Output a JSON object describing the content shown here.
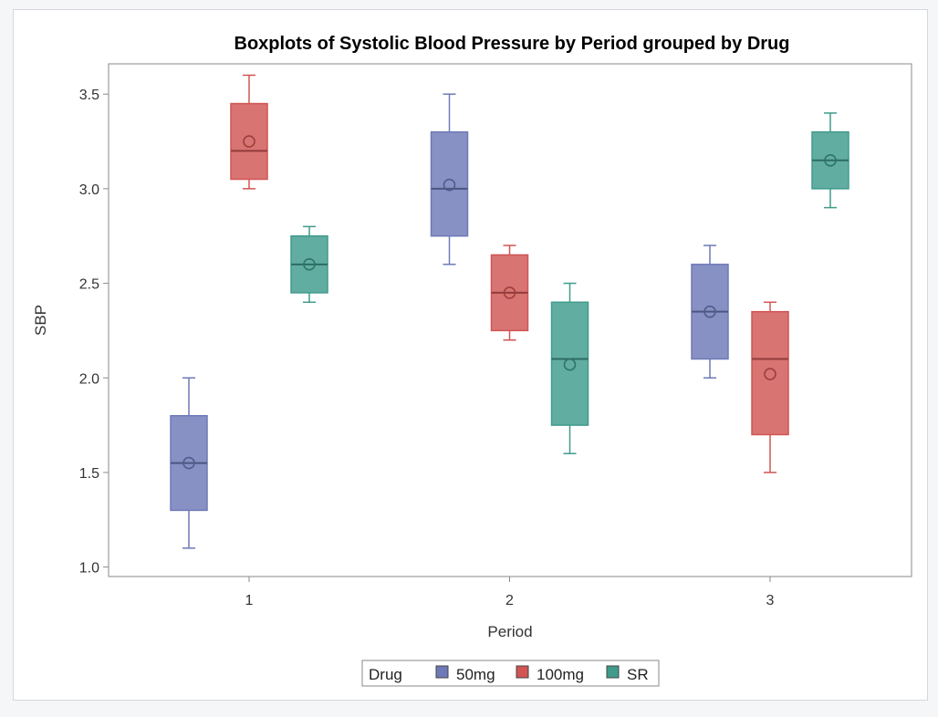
{
  "chart_data": {
    "type": "boxplot",
    "title": "Boxplots of Systolic Blood Pressure by Period grouped by Drug",
    "xlabel": "Period",
    "ylabel": "SBP",
    "categories": [
      "1",
      "2",
      "3"
    ],
    "ylim": [
      0.95,
      3.66
    ],
    "yticks": [
      "1.0",
      "1.5",
      "2.0",
      "2.5",
      "3.0",
      "3.5"
    ],
    "legend": {
      "title": "Drug",
      "position": "bottom"
    },
    "series": [
      {
        "name": "50mg",
        "color": "#6e79b7",
        "boxes": [
          {
            "period": "1",
            "min": 1.1,
            "q1": 1.3,
            "median": 1.55,
            "q3": 1.8,
            "max": 2.0,
            "mean": 1.55
          },
          {
            "period": "2",
            "min": 2.6,
            "q1": 2.75,
            "median": 3.0,
            "q3": 3.3,
            "max": 3.5,
            "mean": 3.02
          },
          {
            "period": "3",
            "min": 2.0,
            "q1": 2.1,
            "median": 2.35,
            "q3": 2.6,
            "max": 2.7,
            "mean": 2.35
          }
        ]
      },
      {
        "name": "100mg",
        "color": "#d05553",
        "boxes": [
          {
            "period": "1",
            "min": 3.0,
            "q1": 3.05,
            "median": 3.2,
            "q3": 3.45,
            "max": 3.6,
            "mean": 3.25
          },
          {
            "period": "2",
            "min": 2.2,
            "q1": 2.25,
            "median": 2.45,
            "q3": 2.65,
            "max": 2.7,
            "mean": 2.45
          },
          {
            "period": "3",
            "min": 1.5,
            "q1": 1.7,
            "median": 2.1,
            "q3": 2.35,
            "max": 2.4,
            "mean": 2.02
          }
        ]
      },
      {
        "name": "SR",
        "color": "#3f9b8c",
        "boxes": [
          {
            "period": "1",
            "min": 2.4,
            "q1": 2.45,
            "median": 2.6,
            "q3": 2.75,
            "max": 2.8,
            "mean": 2.6
          },
          {
            "period": "2",
            "min": 1.6,
            "q1": 1.75,
            "median": 2.1,
            "q3": 2.4,
            "max": 2.5,
            "mean": 2.07
          },
          {
            "period": "3",
            "min": 2.9,
            "q1": 3.0,
            "median": 3.15,
            "q3": 3.3,
            "max": 3.4,
            "mean": 3.15
          }
        ]
      }
    ],
    "colors": {
      "frame": "#8a8a8a",
      "text": "#333333"
    }
  }
}
